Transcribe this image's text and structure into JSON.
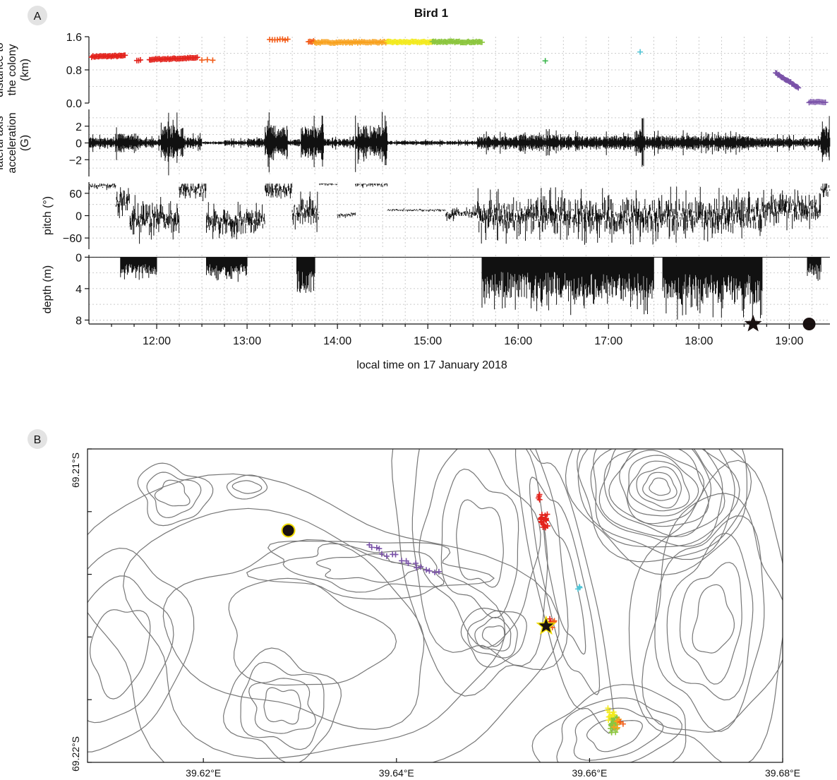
{
  "panel_a": {
    "badge": "A",
    "title": "Bird 1",
    "xlabel": "local time on 17 January 2018"
  },
  "panel_b": {
    "badge": "B"
  },
  "colors": {
    "trace": "#111111",
    "marker_fill": "#1a1111",
    "marker_outline": "#f2dd00",
    "red": "#e3231c",
    "orange_red": "#f25c19",
    "orange": "#f8a11d",
    "yellow": "#f3ea1f",
    "green": "#8cc63f",
    "bright_green": "#39b54a",
    "cyan": "#4ec3d5",
    "purple": "#7a52a8"
  },
  "chart_data": [
    {
      "type": "scatter",
      "name": "distance",
      "ylabel_lines": [
        "distance to",
        "the colony",
        "(km)"
      ],
      "xlim": [
        11.25,
        19.45
      ],
      "ylim": [
        0,
        1.6
      ],
      "x_ticks": [
        "12:00",
        "13:00",
        "14:00",
        "15:00",
        "16:00",
        "17:00",
        "18:00",
        "19:00"
      ],
      "x_tick_values": [
        12,
        13,
        14,
        15,
        16,
        17,
        18,
        19
      ],
      "y_ticks": [
        "0.0",
        "0.8",
        "1.6"
      ],
      "y_tick_values": [
        0,
        0.8,
        1.6
      ],
      "grid": true,
      "segments": [
        {
          "x0": 11.28,
          "x1": 11.65,
          "y0": 1.12,
          "y1": 1.14,
          "color": "red",
          "n": 30
        },
        {
          "x0": 11.78,
          "x1": 11.82,
          "y0": 1.03,
          "y1": 1.03,
          "color": "red",
          "n": 3
        },
        {
          "x0": 11.92,
          "x1": 12.45,
          "y0": 1.05,
          "y1": 1.09,
          "color": "red",
          "n": 40
        },
        {
          "x0": 12.5,
          "x1": 12.62,
          "y0": 1.04,
          "y1": 1.04,
          "color": "orange_red",
          "n": 3
        },
        {
          "x0": 13.25,
          "x1": 13.45,
          "y0": 1.53,
          "y1": 1.53,
          "color": "orange_red",
          "n": 8
        },
        {
          "x0": 13.68,
          "x1": 13.75,
          "y0": 1.49,
          "y1": 1.48,
          "color": "orange_red",
          "n": 6
        },
        {
          "x0": 13.75,
          "x1": 14.55,
          "y0": 1.46,
          "y1": 1.47,
          "color": "orange",
          "n": 55
        },
        {
          "x0": 14.55,
          "x1": 15.05,
          "y0": 1.47,
          "y1": 1.47,
          "color": "yellow",
          "n": 40
        },
        {
          "x0": 15.05,
          "x1": 15.6,
          "y0": 1.48,
          "y1": 1.47,
          "color": "green",
          "n": 45
        },
        {
          "x0": 16.3,
          "x1": 16.3,
          "y0": 1.03,
          "y1": 1.03,
          "color": "bright_green",
          "n": 1
        },
        {
          "x0": 17.35,
          "x1": 17.35,
          "y0": 1.24,
          "y1": 1.24,
          "color": "cyan",
          "n": 1
        },
        {
          "x0": 18.85,
          "x1": 19.1,
          "y0": 0.72,
          "y1": 0.38,
          "color": "purple",
          "n": 22
        },
        {
          "x0": 19.22,
          "x1": 19.4,
          "y0": 0.02,
          "y1": 0.02,
          "color": "purple",
          "n": 12
        }
      ]
    },
    {
      "type": "line",
      "name": "acceleration",
      "ylabel_lines": [
        "lateral axis",
        "acceleration",
        "(G)"
      ],
      "xlim": [
        11.25,
        19.45
      ],
      "ylim": [
        -4,
        4
      ],
      "y_ticks": [
        "2",
        "0",
        "−2"
      ],
      "y_tick_values": [
        2,
        0,
        -2
      ],
      "grid": true,
      "activity": [
        [
          11.25,
          11.55,
          1.2
        ],
        [
          11.55,
          11.8,
          2.2
        ],
        [
          11.8,
          12.05,
          1.0
        ],
        [
          12.05,
          12.3,
          3.8
        ],
        [
          12.3,
          12.5,
          1.3
        ],
        [
          12.5,
          12.75,
          0.3
        ],
        [
          12.75,
          13.0,
          0.6
        ],
        [
          13.0,
          13.2,
          1.0
        ],
        [
          13.2,
          13.45,
          3.8
        ],
        [
          13.45,
          13.6,
          0.8
        ],
        [
          13.6,
          13.85,
          3.6
        ],
        [
          13.85,
          14.2,
          0.9
        ],
        [
          14.2,
          14.55,
          3.8
        ],
        [
          14.55,
          15.55,
          0.45
        ],
        [
          15.55,
          16.0,
          1.4
        ],
        [
          16.0,
          16.5,
          1.8
        ],
        [
          16.5,
          17.3,
          1.5
        ],
        [
          17.3,
          17.4,
          3.0
        ],
        [
          17.4,
          18.6,
          1.6
        ],
        [
          18.6,
          18.9,
          1.2
        ],
        [
          18.9,
          19.35,
          1.0
        ],
        [
          19.35,
          19.45,
          3.8
        ]
      ]
    },
    {
      "type": "line",
      "name": "pitch",
      "ylabel_lines": [
        "pitch (°)"
      ],
      "xlim": [
        11.25,
        19.45
      ],
      "ylim": [
        -90,
        90
      ],
      "y_ticks": [
        "60",
        "0",
        "−60"
      ],
      "y_tick_values": [
        60,
        0,
        -60
      ],
      "grid": true,
      "segments": [
        [
          11.25,
          11.55,
          80,
          8
        ],
        [
          11.55,
          11.7,
          40,
          35
        ],
        [
          11.7,
          12.25,
          -10,
          45
        ],
        [
          12.25,
          12.55,
          70,
          25
        ],
        [
          12.55,
          13.2,
          -15,
          35
        ],
        [
          13.2,
          13.5,
          70,
          25
        ],
        [
          13.5,
          13.8,
          10,
          35
        ],
        [
          13.8,
          14.0,
          85,
          4
        ],
        [
          14.0,
          14.2,
          2,
          6
        ],
        [
          14.2,
          14.55,
          85,
          8
        ],
        [
          14.55,
          15.2,
          15,
          3
        ],
        [
          15.2,
          15.55,
          5,
          15
        ],
        [
          15.55,
          18.7,
          0,
          50
        ],
        [
          18.7,
          19.35,
          20,
          40
        ],
        [
          19.35,
          19.45,
          70,
          20
        ]
      ]
    },
    {
      "type": "line",
      "name": "depth",
      "ylabel_lines": [
        "depth (m)"
      ],
      "xlim": [
        11.25,
        19.45
      ],
      "ylim": [
        8.5,
        -0.3
      ],
      "y_ticks": [
        "0",
        "4",
        "8"
      ],
      "y_tick_values": [
        0,
        4,
        8
      ],
      "grid": true,
      "dives": [
        [
          11.6,
          12.0,
          3.0
        ],
        [
          12.55,
          13.0,
          3.2
        ],
        [
          13.55,
          13.75,
          6.0
        ],
        [
          15.6,
          16.5,
          7.0
        ],
        [
          16.5,
          17.5,
          7.5
        ],
        [
          17.6,
          18.7,
          8.0
        ],
        [
          19.2,
          19.35,
          3.0
        ]
      ],
      "markers": [
        {
          "shape": "star",
          "x": 18.6
        },
        {
          "shape": "circle",
          "x": 19.22
        }
      ]
    }
  ],
  "map": {
    "x_ticks": [
      "39.62°E",
      "39.64°E",
      "39.66°E",
      "39.68°E"
    ],
    "x_tick_values": [
      39.62,
      39.64,
      39.66,
      39.68
    ],
    "lon_range": [
      39.608,
      39.68
    ],
    "y_tick_top": "69.21°S",
    "y_tick_bottom": "69.22°S",
    "clusters": [
      {
        "lon": 39.6553,
        "frac_y": 0.23,
        "color": "red",
        "n": 25,
        "spread": 10
      },
      {
        "lon": 39.6549,
        "frac_y": 0.16,
        "color": "red",
        "n": 4,
        "spread": 6
      },
      {
        "lon": 39.6557,
        "frac_y": 0.56,
        "color": "red",
        "n": 6,
        "spread": 8
      },
      {
        "lon": 39.6563,
        "frac_y": 0.56,
        "color": "orange_red",
        "n": 3,
        "spread": 8
      },
      {
        "lon": 39.6625,
        "frac_y": 0.88,
        "color": "green",
        "n": 35,
        "spread": 10
      },
      {
        "lon": 39.6622,
        "frac_y": 0.85,
        "color": "yellow",
        "n": 10,
        "spread": 10
      },
      {
        "lon": 39.6628,
        "frac_y": 0.87,
        "color": "orange",
        "n": 6,
        "spread": 9
      },
      {
        "lon": 39.6633,
        "frac_y": 0.875,
        "color": "orange_red",
        "n": 2,
        "spread": 6
      },
      {
        "lon": 39.6589,
        "frac_y": 0.44,
        "color": "cyan",
        "n": 3,
        "spread": 6
      },
      {
        "lon": 39.641,
        "frac_y": 0.34,
        "color": "purple",
        "n": 18,
        "spread": 22
      }
    ],
    "markers": [
      {
        "shape": "circle",
        "lon": 39.6288,
        "frac_y": 0.26
      },
      {
        "shape": "star",
        "lon": 39.6555,
        "frac_y": 0.565
      }
    ]
  }
}
